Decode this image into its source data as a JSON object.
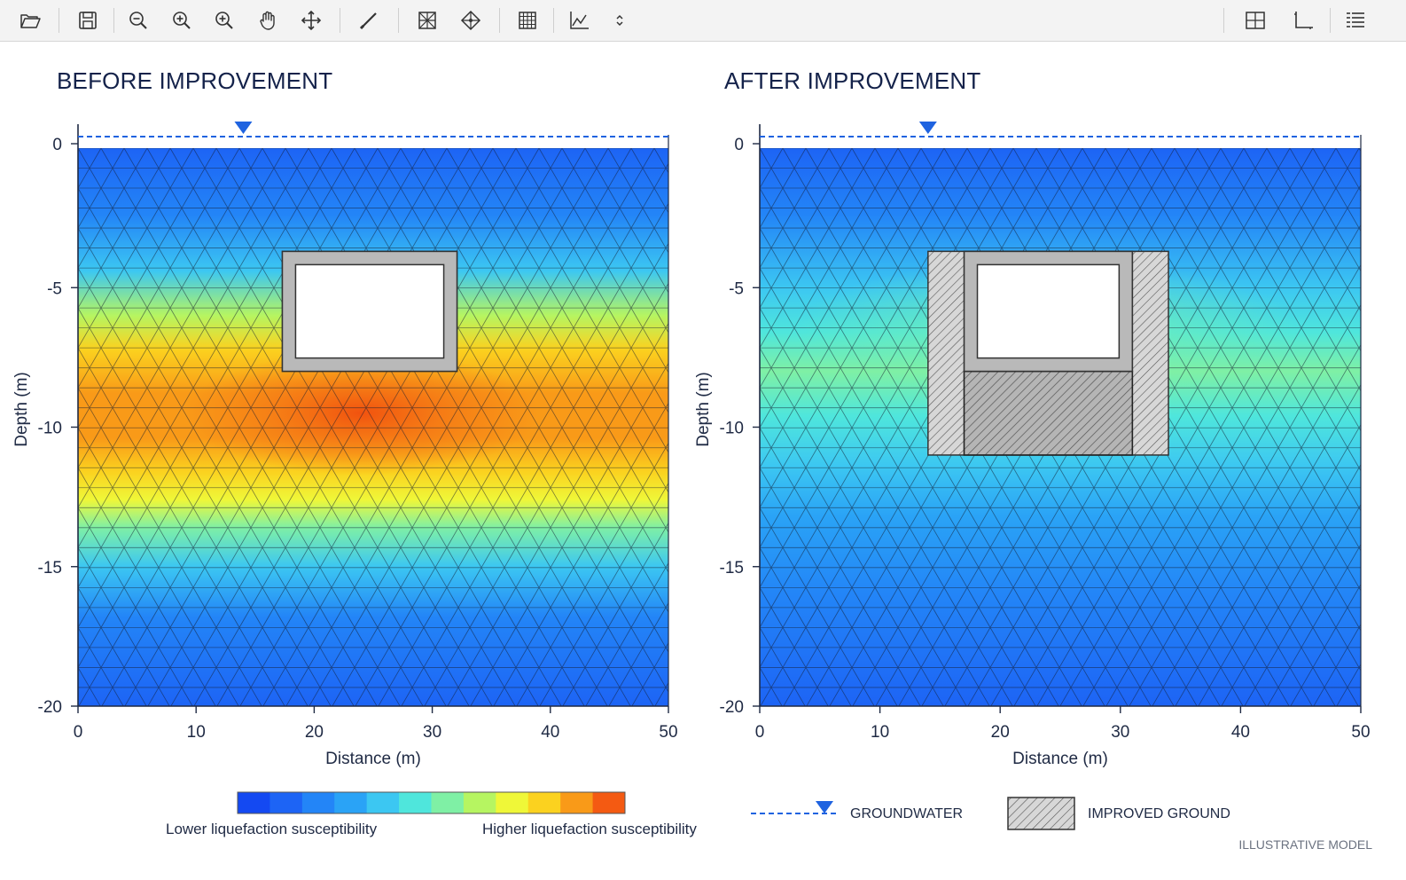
{
  "toolbar": {
    "left_tools": [
      {
        "name": "open-folder-icon"
      },
      {
        "name": "save-icon"
      },
      {
        "name": "zoom-out-icon"
      },
      {
        "name": "zoom-in-icon"
      },
      {
        "name": "zoom-fit-icon"
      },
      {
        "name": "pan-hand-icon"
      },
      {
        "name": "move-icon"
      },
      {
        "name": "draw-line-icon"
      },
      {
        "name": "mesh-icon"
      },
      {
        "name": "node-icon"
      },
      {
        "name": "grid-icon"
      },
      {
        "name": "graph-icon"
      },
      {
        "name": "chevron-updown-icon"
      }
    ],
    "right_tools": [
      {
        "name": "layout-split-icon"
      },
      {
        "name": "axes-icon"
      },
      {
        "name": "legend-list-icon"
      }
    ]
  },
  "panels": {
    "before": {
      "title": "BEFORE IMPROVEMENT"
    },
    "after": {
      "title": "AFTER IMPROVEMENT"
    }
  },
  "chart_data": [
    {
      "type": "heatmap",
      "title": "BEFORE IMPROVEMENT",
      "xlabel": "Distance (m)",
      "ylabel": "Depth (m)",
      "xlim": [
        0,
        50
      ],
      "ylim": [
        -20,
        0
      ],
      "xticks": [
        "0",
        "10",
        "20",
        "30",
        "40",
        "50"
      ],
      "yticks": [
        "0",
        "-5",
        "-10",
        "-15",
        "-20"
      ],
      "groundwater_depth": 0.3,
      "groundwater_marker_x": 14,
      "structure": {
        "x": [
          17.3,
          32.1
        ],
        "depth": [
          -3.7,
          -8.0
        ]
      },
      "high_susceptibility_band_depth": [
        -6,
        -13
      ],
      "improved_ground": false
    },
    {
      "type": "heatmap",
      "title": "AFTER IMPROVEMENT",
      "xlabel": "Distance (m)",
      "ylabel": "Depth (m)",
      "xlim": [
        0,
        50
      ],
      "ylim": [
        -20,
        0
      ],
      "xticks": [
        "0",
        "10",
        "20",
        "30",
        "40",
        "50"
      ],
      "yticks": [
        "0",
        "-5",
        "-10",
        "-15",
        "-20"
      ],
      "groundwater_depth": 0.3,
      "groundwater_marker_x": 14,
      "structure": {
        "x": [
          17.0,
          31.0
        ],
        "depth": [
          -3.7,
          -8.0
        ]
      },
      "improved_zone": {
        "x": [
          14.0,
          34.0
        ],
        "depth": [
          -3.7,
          -11.0
        ]
      },
      "high_susceptibility_band_depth": [
        -6,
        -11
      ],
      "improved_ground": true
    }
  ],
  "colorbar": {
    "colors": [
      "#1449f2",
      "#1d64f5",
      "#2385f7",
      "#2aa3f6",
      "#3cc7f2",
      "#4fe6dc",
      "#7ff0a5",
      "#b6f561",
      "#eff738",
      "#fbd21f",
      "#f99a18",
      "#f45a12"
    ],
    "low_label": "Lower liquefaction susceptibility",
    "high_label": "Higher liquefaction susceptibility"
  },
  "legend": {
    "groundwater_label": "GROUNDWATER",
    "improved_label": "IMPROVED GROUND"
  },
  "footer": {
    "note": "ILLUSTRATIVE MODEL"
  },
  "colors": {
    "axis": "#1f2a44",
    "groundwater": "#1f63e0",
    "structure": "#b9b9b9",
    "title": "#14224a"
  }
}
